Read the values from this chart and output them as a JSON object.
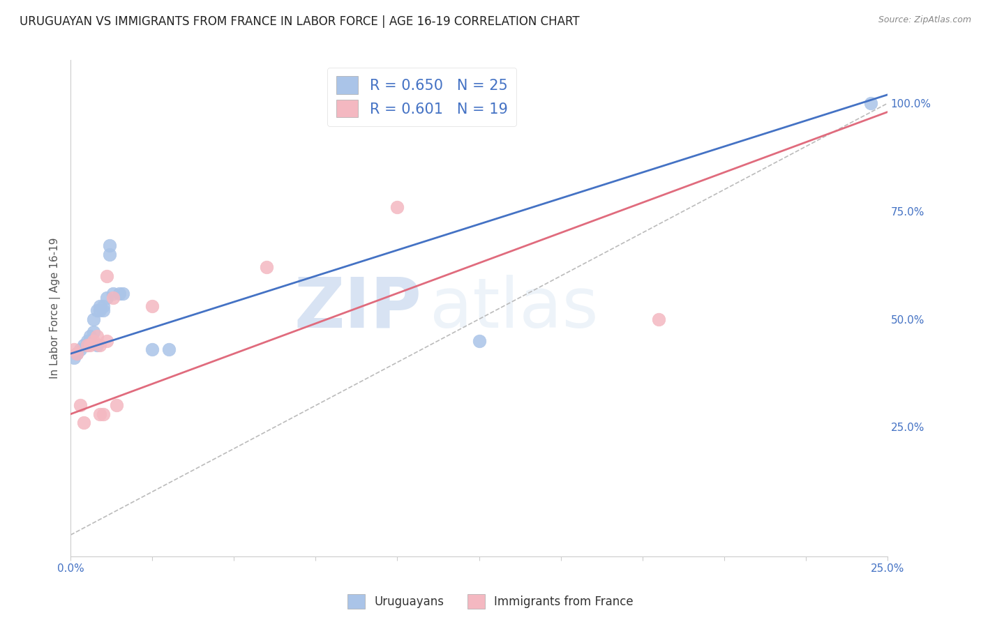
{
  "title": "URUGUAYAN VS IMMIGRANTS FROM FRANCE IN LABOR FORCE | AGE 16-19 CORRELATION CHART",
  "source": "Source: ZipAtlas.com",
  "ylabel": "In Labor Force | Age 16-19",
  "xlim": [
    0.0,
    0.25
  ],
  "ylim": [
    -0.05,
    1.1
  ],
  "x_ticks": [
    0.0,
    0.025,
    0.05,
    0.075,
    0.1,
    0.125,
    0.15,
    0.175,
    0.2,
    0.225,
    0.25
  ],
  "x_tick_labels": [
    "0.0%",
    "",
    "",
    "",
    "",
    "",
    "",
    "",
    "",
    "",
    "25.0%"
  ],
  "y_ticks_right": [
    0.25,
    0.5,
    0.75,
    1.0
  ],
  "blue_R": 0.65,
  "blue_N": 25,
  "pink_R": 0.601,
  "pink_N": 19,
  "blue_color": "#aac4e8",
  "pink_color": "#f4b8c1",
  "blue_line_color": "#4472c4",
  "pink_line_color": "#e06b7d",
  "grid_color": "#e0e0e0",
  "watermark_zip": "ZIP",
  "watermark_atlas": "atlas",
  "uruguayan_x": [
    0.001,
    0.002,
    0.003,
    0.004,
    0.005,
    0.005,
    0.006,
    0.007,
    0.007,
    0.008,
    0.008,
    0.009,
    0.009,
    0.01,
    0.01,
    0.011,
    0.012,
    0.012,
    0.013,
    0.015,
    0.016,
    0.025,
    0.03,
    0.125,
    0.245
  ],
  "uruguayan_y": [
    0.41,
    0.42,
    0.43,
    0.44,
    0.44,
    0.45,
    0.46,
    0.47,
    0.5,
    0.52,
    0.44,
    0.52,
    0.53,
    0.52,
    0.53,
    0.55,
    0.65,
    0.67,
    0.56,
    0.56,
    0.56,
    0.43,
    0.43,
    0.45,
    1.0
  ],
  "france_x": [
    0.001,
    0.002,
    0.003,
    0.004,
    0.005,
    0.006,
    0.007,
    0.008,
    0.009,
    0.009,
    0.01,
    0.011,
    0.011,
    0.013,
    0.014,
    0.025,
    0.06,
    0.1,
    0.18
  ],
  "france_y": [
    0.43,
    0.42,
    0.3,
    0.26,
    0.44,
    0.44,
    0.45,
    0.46,
    0.28,
    0.44,
    0.28,
    0.45,
    0.6,
    0.55,
    0.3,
    0.53,
    0.62,
    0.76,
    0.5
  ],
  "blue_line_x0": 0.0,
  "blue_line_y0": 0.42,
  "blue_line_x1": 0.25,
  "blue_line_y1": 1.02,
  "pink_line_x0": 0.0,
  "pink_line_y0": 0.28,
  "pink_line_x1": 0.25,
  "pink_line_y1": 0.98
}
